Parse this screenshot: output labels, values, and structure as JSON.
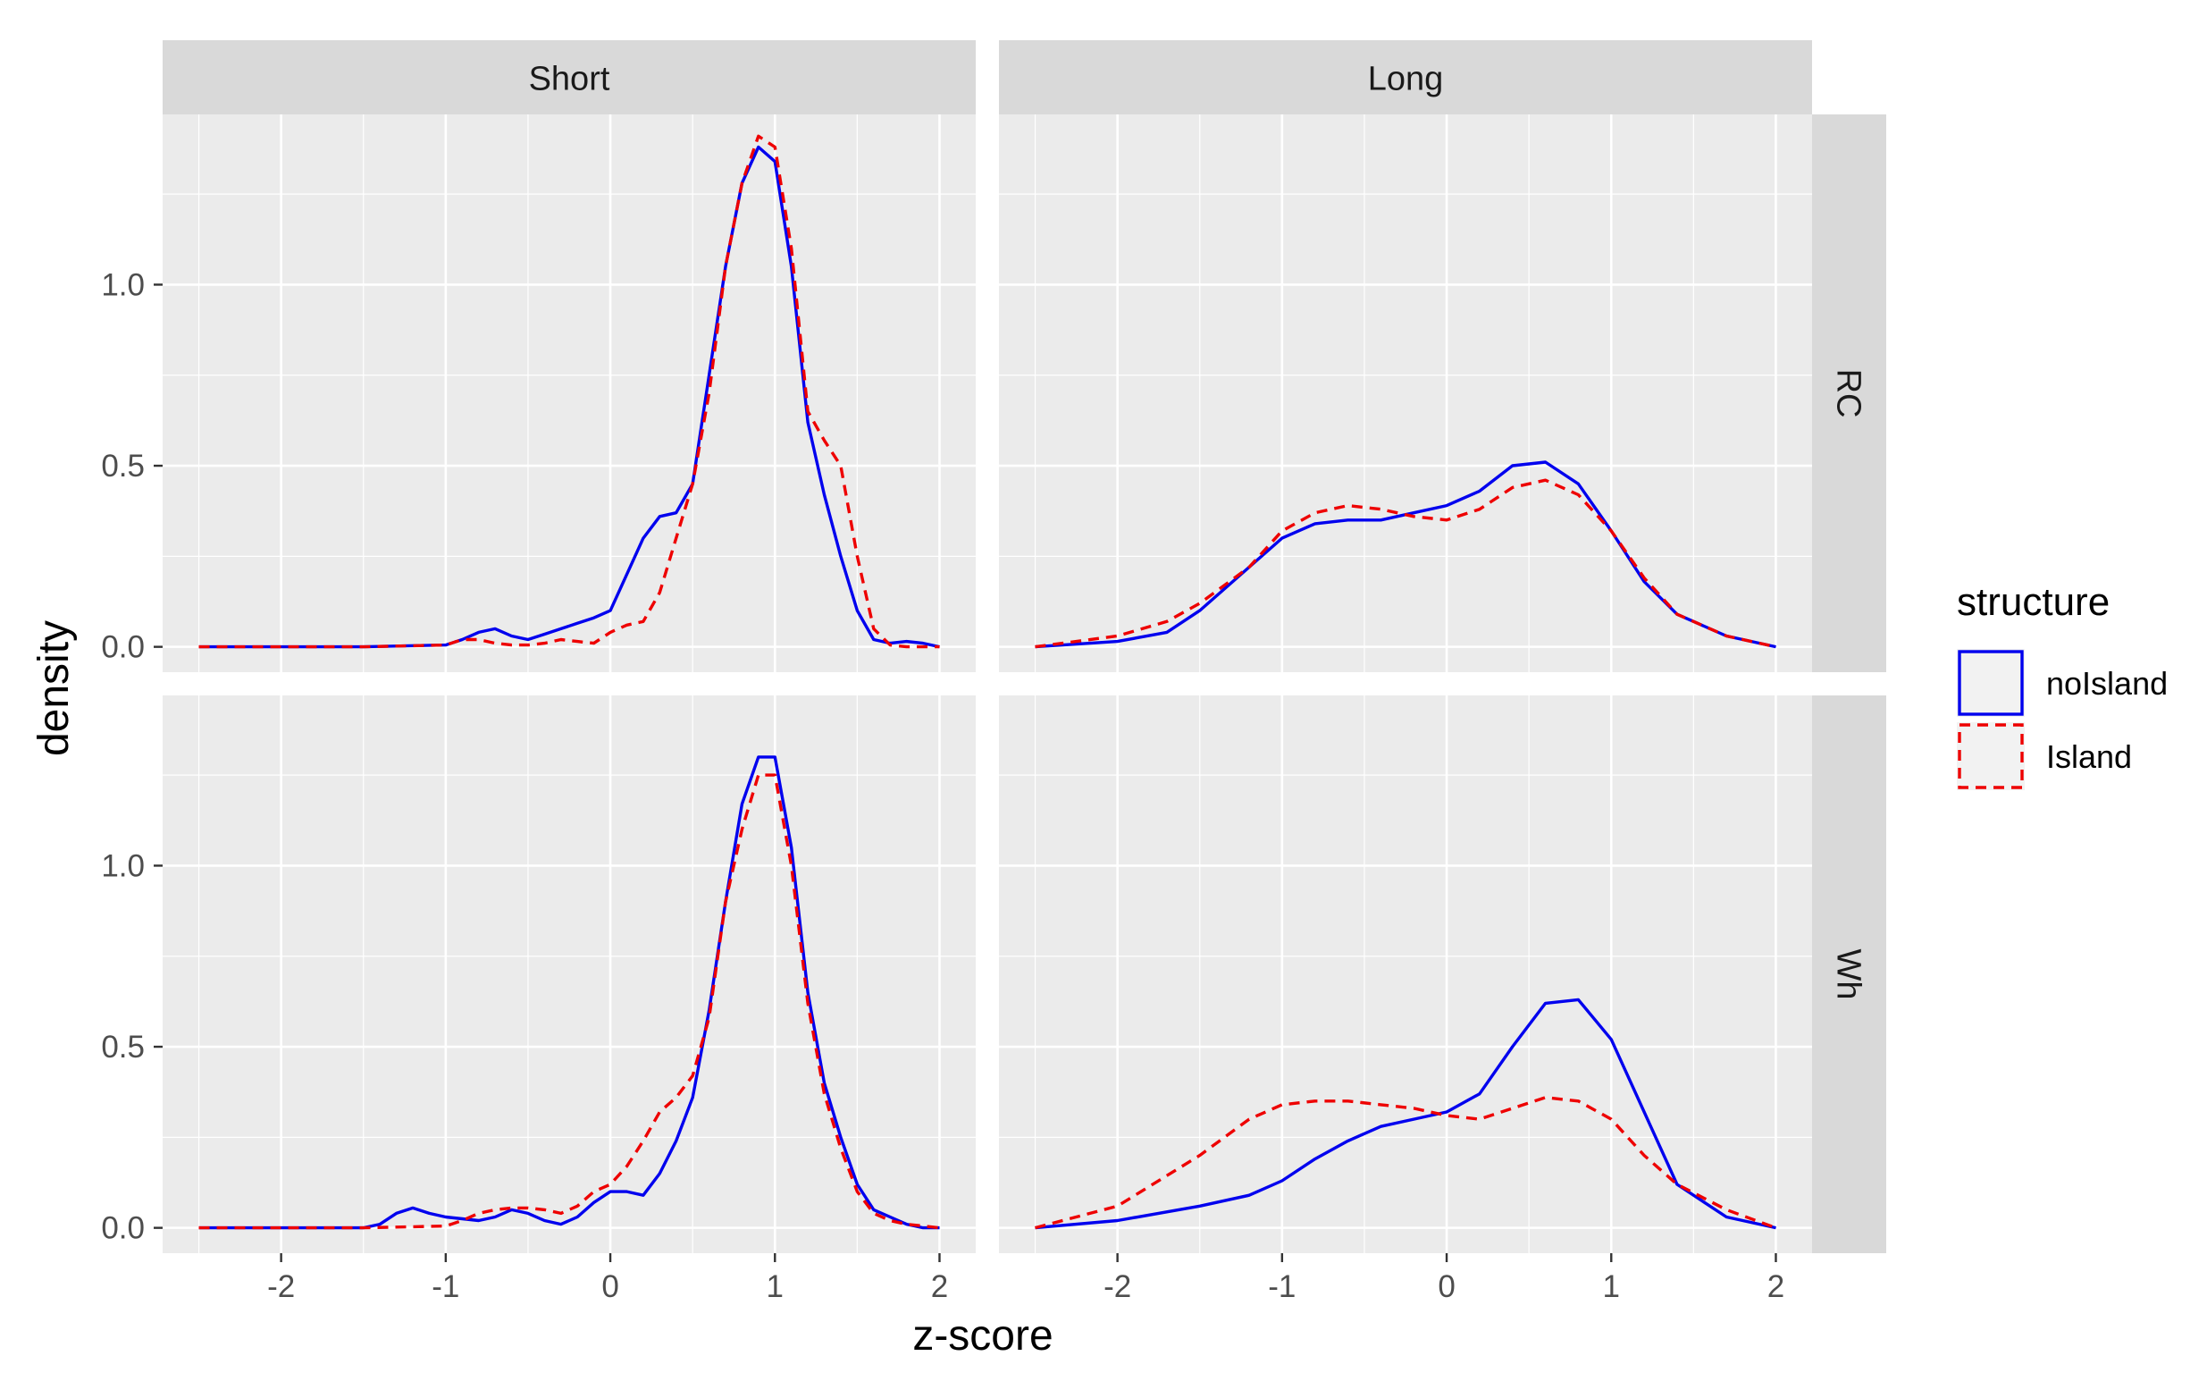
{
  "chart_data": {
    "type": "line",
    "xlabel": "z-score",
    "ylabel": "density",
    "facet_cols": [
      "Short",
      "Long"
    ],
    "facet_rows": [
      "RC",
      "Wh"
    ],
    "x_ticks": [
      "-2",
      "-1",
      "0",
      "1",
      "2"
    ],
    "y_ticks": [
      "0.0",
      "0.5",
      "1.0"
    ],
    "xlim": [
      -2.72,
      2.22
    ],
    "ylim": [
      -0.07,
      1.47
    ],
    "grid": true,
    "legend": {
      "title": "structure",
      "position": "right",
      "entries": [
        {
          "label": "noIsland",
          "color": "#0000ee",
          "linetype": "solid"
        },
        {
          "label": "Island",
          "color": "#ee0000",
          "linetype": "dashed"
        }
      ]
    },
    "panels": [
      {
        "col": "Short",
        "row": "RC",
        "series": [
          {
            "name": "noIsland",
            "x": [
              -2.5,
              -1.5,
              -1.0,
              -0.9,
              -0.8,
              -0.7,
              -0.6,
              -0.5,
              -0.4,
              -0.3,
              -0.2,
              -0.1,
              0.0,
              0.1,
              0.2,
              0.3,
              0.4,
              0.5,
              0.6,
              0.7,
              0.8,
              0.9,
              1.0,
              1.1,
              1.2,
              1.3,
              1.4,
              1.5,
              1.6,
              1.7,
              1.8,
              1.9,
              2.0
            ],
            "y": [
              0,
              0,
              0.005,
              0.02,
              0.04,
              0.05,
              0.03,
              0.02,
              0.035,
              0.05,
              0.065,
              0.08,
              0.1,
              0.2,
              0.3,
              0.36,
              0.37,
              0.45,
              0.75,
              1.05,
              1.28,
              1.38,
              1.34,
              1.05,
              0.62,
              0.42,
              0.25,
              0.1,
              0.02,
              0.01,
              0.015,
              0.01,
              0
            ]
          },
          {
            "name": "Island",
            "x": [
              -2.5,
              -1.5,
              -1.0,
              -0.9,
              -0.8,
              -0.7,
              -0.6,
              -0.5,
              -0.4,
              -0.3,
              -0.2,
              -0.1,
              0.0,
              0.1,
              0.2,
              0.3,
              0.4,
              0.5,
              0.6,
              0.7,
              0.8,
              0.9,
              1.0,
              1.1,
              1.2,
              1.3,
              1.4,
              1.5,
              1.6,
              1.7,
              1.8,
              1.9,
              2.0
            ],
            "y": [
              0,
              0,
              0.005,
              0.02,
              0.02,
              0.01,
              0.005,
              0.005,
              0.01,
              0.02,
              0.015,
              0.01,
              0.04,
              0.06,
              0.07,
              0.15,
              0.3,
              0.45,
              0.7,
              1.05,
              1.28,
              1.41,
              1.38,
              1.1,
              0.65,
              0.57,
              0.5,
              0.25,
              0.05,
              0.005,
              0,
              0,
              0
            ]
          }
        ]
      },
      {
        "col": "Long",
        "row": "RC",
        "series": [
          {
            "name": "noIsland",
            "x": [
              -2.5,
              -2.0,
              -1.7,
              -1.5,
              -1.2,
              -1.0,
              -0.8,
              -0.6,
              -0.4,
              -0.2,
              0.0,
              0.2,
              0.4,
              0.6,
              0.8,
              1.0,
              1.2,
              1.4,
              1.7,
              2.0
            ],
            "y": [
              0,
              0.015,
              0.04,
              0.1,
              0.22,
              0.3,
              0.34,
              0.35,
              0.35,
              0.37,
              0.39,
              0.43,
              0.5,
              0.51,
              0.45,
              0.32,
              0.18,
              0.09,
              0.03,
              0
            ]
          },
          {
            "name": "Island",
            "x": [
              -2.5,
              -2.0,
              -1.7,
              -1.5,
              -1.2,
              -1.0,
              -0.8,
              -0.6,
              -0.4,
              -0.2,
              0.0,
              0.2,
              0.4,
              0.6,
              0.8,
              1.0,
              1.2,
              1.4,
              1.7,
              2.0
            ],
            "y": [
              0,
              0.03,
              0.07,
              0.12,
              0.22,
              0.32,
              0.37,
              0.39,
              0.38,
              0.36,
              0.35,
              0.38,
              0.44,
              0.46,
              0.42,
              0.32,
              0.19,
              0.09,
              0.03,
              0
            ]
          }
        ]
      },
      {
        "col": "Short",
        "row": "Wh",
        "series": [
          {
            "name": "noIsland",
            "x": [
              -2.5,
              -1.5,
              -1.4,
              -1.3,
              -1.2,
              -1.1,
              -1.0,
              -0.9,
              -0.8,
              -0.7,
              -0.6,
              -0.5,
              -0.4,
              -0.3,
              -0.2,
              -0.1,
              0.0,
              0.1,
              0.2,
              0.3,
              0.4,
              0.5,
              0.6,
              0.7,
              0.8,
              0.9,
              1.0,
              1.1,
              1.2,
              1.3,
              1.4,
              1.5,
              1.6,
              1.7,
              1.8,
              1.9,
              2.0
            ],
            "y": [
              0,
              0,
              0.01,
              0.04,
              0.055,
              0.04,
              0.03,
              0.025,
              0.02,
              0.03,
              0.05,
              0.04,
              0.02,
              0.01,
              0.03,
              0.07,
              0.1,
              0.1,
              0.09,
              0.15,
              0.24,
              0.36,
              0.6,
              0.9,
              1.17,
              1.3,
              1.3,
              1.05,
              0.65,
              0.4,
              0.25,
              0.12,
              0.05,
              0.03,
              0.01,
              0,
              0
            ]
          },
          {
            "name": "Island",
            "x": [
              -2.5,
              -1.5,
              -1.0,
              -0.9,
              -0.8,
              -0.7,
              -0.6,
              -0.5,
              -0.4,
              -0.3,
              -0.2,
              -0.1,
              0.0,
              0.1,
              0.2,
              0.3,
              0.4,
              0.5,
              0.6,
              0.7,
              0.8,
              0.9,
              1.0,
              1.1,
              1.2,
              1.3,
              1.4,
              1.5,
              1.6,
              1.7,
              1.8,
              1.9,
              2.0
            ],
            "y": [
              0,
              0,
              0.005,
              0.02,
              0.04,
              0.05,
              0.055,
              0.055,
              0.05,
              0.04,
              0.06,
              0.1,
              0.12,
              0.17,
              0.24,
              0.32,
              0.36,
              0.42,
              0.58,
              0.9,
              1.1,
              1.25,
              1.25,
              1.0,
              0.62,
              0.37,
              0.22,
              0.1,
              0.04,
              0.02,
              0.01,
              0.005,
              0
            ]
          }
        ]
      },
      {
        "col": "Long",
        "row": "Wh",
        "series": [
          {
            "name": "noIsland",
            "x": [
              -2.5,
              -2.0,
              -1.5,
              -1.2,
              -1.0,
              -0.8,
              -0.6,
              -0.4,
              -0.2,
              0.0,
              0.2,
              0.4,
              0.6,
              0.8,
              1.0,
              1.2,
              1.4,
              1.7,
              2.0
            ],
            "y": [
              0,
              0.02,
              0.06,
              0.09,
              0.13,
              0.19,
              0.24,
              0.28,
              0.3,
              0.32,
              0.37,
              0.5,
              0.62,
              0.63,
              0.52,
              0.32,
              0.12,
              0.03,
              0
            ]
          },
          {
            "name": "Island",
            "x": [
              -2.5,
              -2.0,
              -1.5,
              -1.2,
              -1.0,
              -0.8,
              -0.6,
              -0.4,
              -0.2,
              0.0,
              0.2,
              0.4,
              0.6,
              0.8,
              1.0,
              1.2,
              1.4,
              1.7,
              2.0
            ],
            "y": [
              0,
              0.06,
              0.2,
              0.3,
              0.34,
              0.35,
              0.35,
              0.34,
              0.33,
              0.31,
              0.3,
              0.33,
              0.36,
              0.35,
              0.3,
              0.2,
              0.12,
              0.05,
              0
            ]
          }
        ]
      }
    ]
  }
}
